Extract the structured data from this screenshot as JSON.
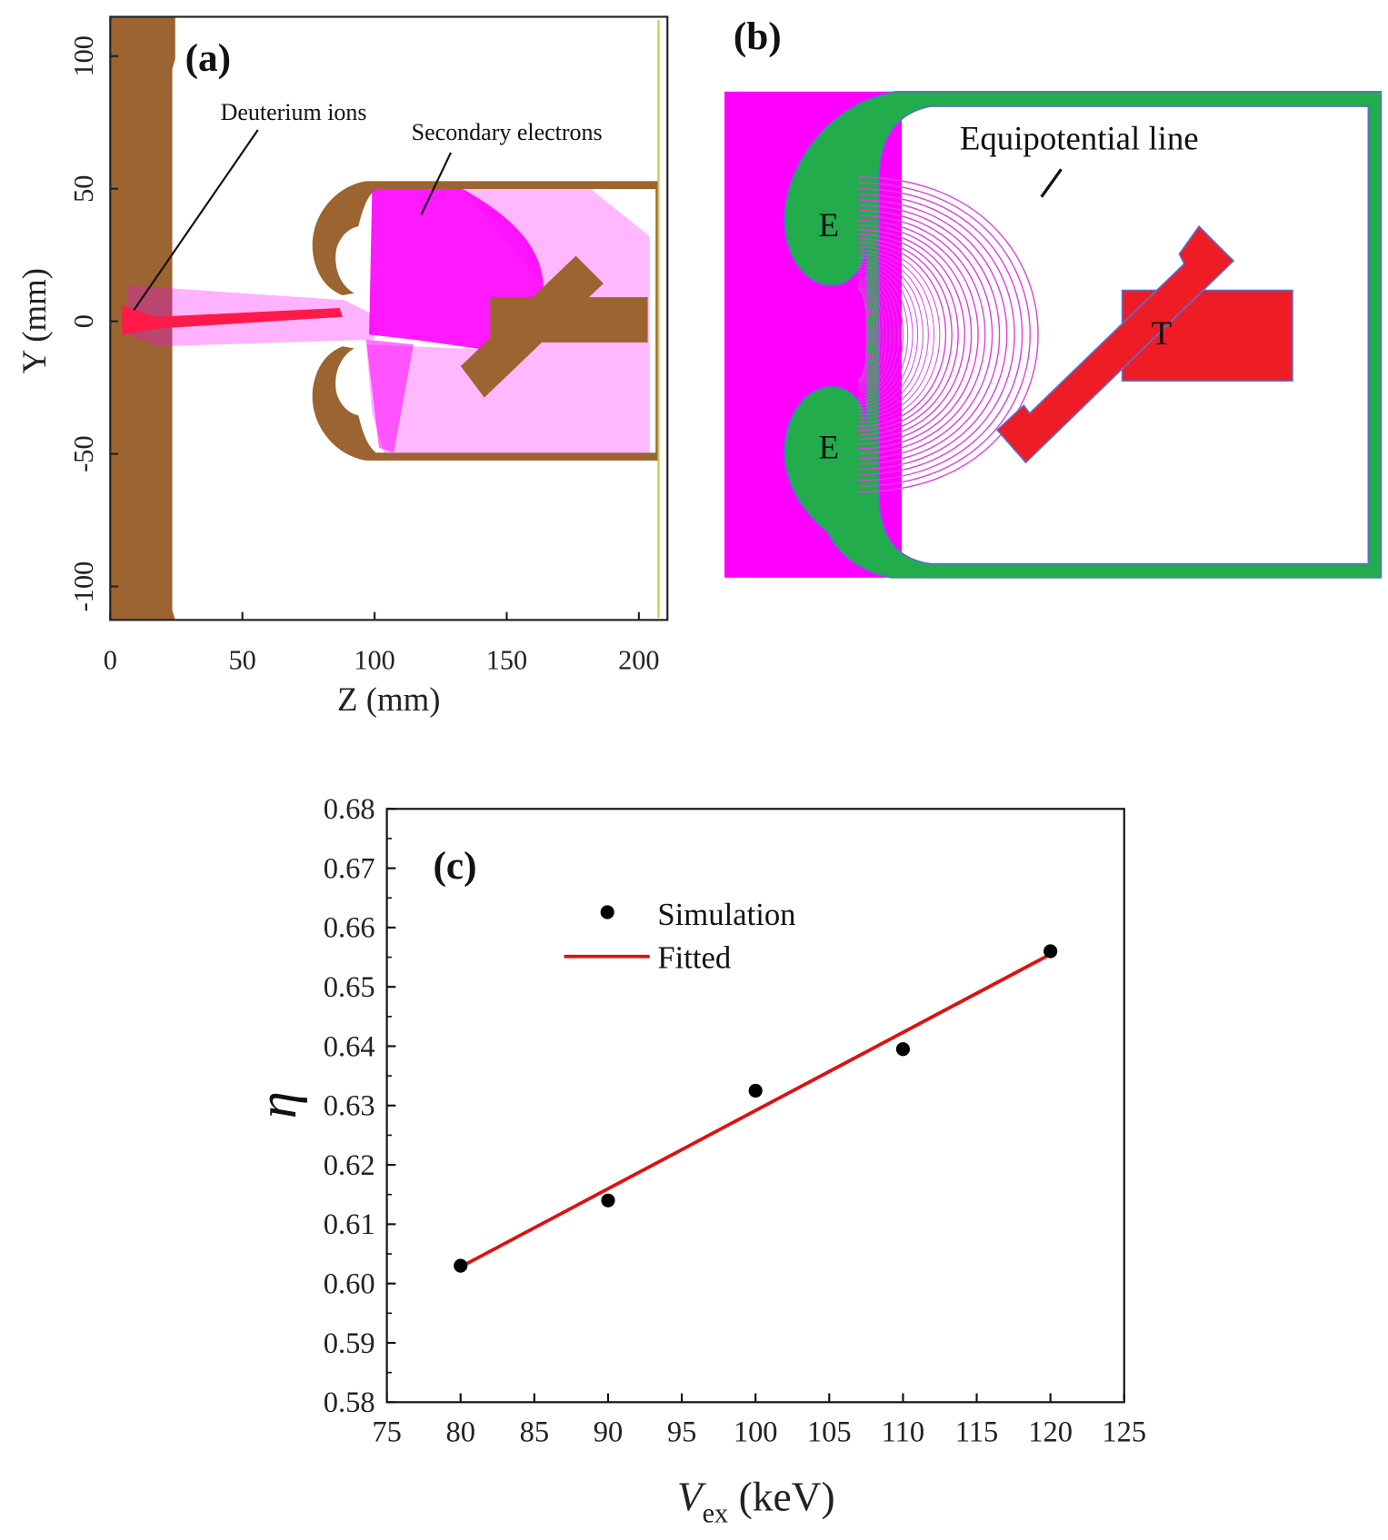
{
  "panel_a": {
    "label": "(a)",
    "xlabel": "Z (mm)",
    "ylabel": "Y (mm)",
    "xticks": [
      "0",
      "50",
      "100",
      "150",
      "200"
    ],
    "yticks": [
      "100",
      "50",
      "0",
      "-50",
      "-100"
    ],
    "annotations": {
      "ions": "Deuterium ions",
      "electrons": "Secondary electrons"
    },
    "colors": {
      "electrode": "#9c6430",
      "electrons": "#ff00ff",
      "ions": "#ff1a4a"
    }
  },
  "panel_b": {
    "label": "(b)",
    "annotation": "Equipotential line",
    "electrode_upper": "E",
    "electrode_lower": "E",
    "target": "T",
    "colors": {
      "electrode": "#22ac4c",
      "plasma": "#ff00ff",
      "target": "#ee1c25",
      "lines": "#e040e0"
    }
  },
  "chart_data": {
    "type": "scatter",
    "panel_label": "(c)",
    "xlabel": "V",
    "xlabel_sub": "ex",
    "xlabel_unit": " (keV)",
    "ylabel": "η",
    "xlim": [
      75,
      125
    ],
    "ylim": [
      0.58,
      0.68
    ],
    "xticks": [
      "75",
      "80",
      "85",
      "90",
      "95",
      "100",
      "105",
      "110",
      "115",
      "120",
      "125"
    ],
    "yticks": [
      "0.58",
      "0.59",
      "0.60",
      "0.61",
      "0.62",
      "0.63",
      "0.64",
      "0.65",
      "0.66",
      "0.67",
      "0.68"
    ],
    "legend": {
      "simulation": "Simulation",
      "fitted": "Fitted",
      "placement": "top-left"
    },
    "series": [
      {
        "name": "Simulation",
        "kind": "points",
        "x": [
          80,
          90,
          100,
          110,
          120
        ],
        "y": [
          0.603,
          0.614,
          0.6325,
          0.6395,
          0.656
        ],
        "color": "#000000"
      },
      {
        "name": "Fitted",
        "kind": "line",
        "x": [
          80,
          120
        ],
        "y": [
          0.6028,
          0.6555
        ],
        "color": "#e01010"
      }
    ]
  }
}
